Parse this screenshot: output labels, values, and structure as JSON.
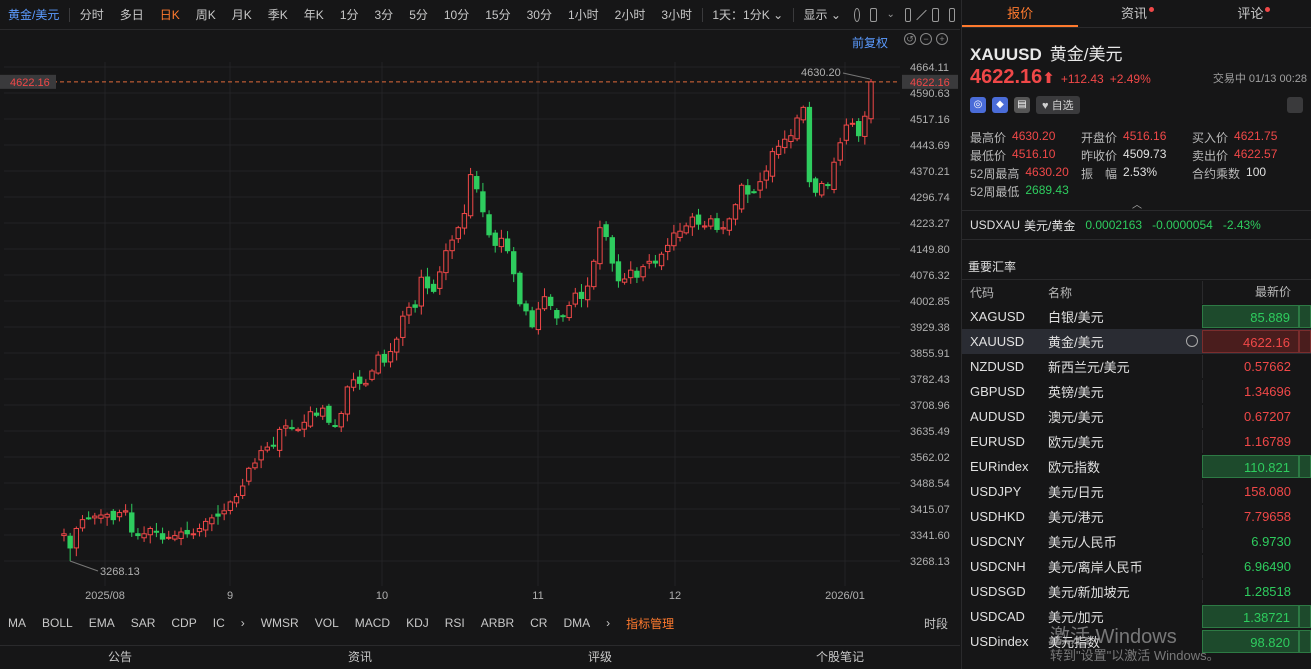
{
  "toolbar": {
    "symbol": "黄金/美元",
    "periods": [
      "分时",
      "多日",
      "日K",
      "周K",
      "月K",
      "季K",
      "年K",
      "1分",
      "3分",
      "5分",
      "10分",
      "15分",
      "30分",
      "1小时",
      "2小时",
      "3小时"
    ],
    "active_period": "日K",
    "ratio": "1天：1分K",
    "display": "显示"
  },
  "chart": {
    "restore_label": "前复权",
    "y_ticks": [
      "4664.11",
      "4590.63",
      "4517.16",
      "4443.69",
      "4370.21",
      "4296.74",
      "4223.27",
      "4149.80",
      "4076.32",
      "4002.85",
      "3929.38",
      "3855.91",
      "3782.43",
      "3708.96",
      "3635.49",
      "3562.02",
      "3488.54",
      "3415.07",
      "3341.60",
      "3268.13"
    ],
    "x_ticks": [
      "2025/08",
      "9",
      "10",
      "11",
      "12",
      "2026/01"
    ],
    "current_price_tag": "4622.16",
    "high_label": "4630.20",
    "low_label": "3268.13",
    "up_color": "#f04848",
    "down_color": "#2ecc5e"
  },
  "chart_data": {
    "type": "candlestick",
    "y_range": [
      3268.13,
      4664.11
    ],
    "current": 4622.16,
    "max_high": 4630.2,
    "min_low": 3268.13,
    "closes": [
      3345,
      3305,
      3360,
      3385,
      3390,
      3395,
      3398,
      3400,
      3385,
      3405,
      3410,
      3350,
      3340,
      3345,
      3360,
      3350,
      3330,
      3335,
      3340,
      3350,
      3345,
      3345,
      3360,
      3380,
      3390,
      3395,
      3410,
      3435,
      3450,
      3480,
      3530,
      3545,
      3580,
      3590,
      3595,
      3640,
      3650,
      3645,
      3640,
      3660,
      3690,
      3680,
      3700,
      3660,
      3650,
      3685,
      3760,
      3780,
      3770,
      3770,
      3805,
      3850,
      3830,
      3860,
      3895,
      3960,
      3985,
      3985,
      4070,
      4040,
      4030,
      4085,
      4145,
      4175,
      4210,
      4250,
      4360,
      4320,
      4255,
      4190,
      4160,
      4180,
      4145,
      4080,
      3995,
      3975,
      3930,
      3980,
      4015,
      3990,
      3955,
      3960,
      3990,
      4025,
      4010,
      4045,
      4115,
      4210,
      4185,
      4110,
      4060,
      4065,
      4090,
      4070,
      4100,
      4115,
      4110,
      4135,
      4160,
      4195,
      4200,
      4215,
      4240,
      4220,
      4215,
      4235,
      4205,
      4210,
      4235,
      4275,
      4330,
      4305,
      4310,
      4340,
      4370,
      4425,
      4440,
      4460,
      4470,
      4520,
      4550,
      4340,
      4310,
      4335,
      4330,
      4395,
      4450,
      4500,
      4505,
      4470,
      4525,
      4622.16
    ],
    "x_labels": [
      "2025/08",
      "9",
      "10",
      "11",
      "12",
      "2026/01"
    ]
  },
  "indicators": {
    "items": [
      "MA",
      "BOLL",
      "EMA",
      "SAR",
      "CDP",
      "IC",
      "WMSR",
      "VOL",
      "MACD",
      "KDJ",
      "RSI",
      "ARBR",
      "CR",
      "DMA"
    ],
    "manager": "指标管理",
    "right": "时段"
  },
  "bottom_tabs": [
    "公告",
    "资讯",
    "评级",
    "个股笔记"
  ],
  "right_tabs": [
    "报价",
    "资讯",
    "评论"
  ],
  "quote": {
    "code": "XAUUSD",
    "name": "黄金/美元",
    "price": "4622.16",
    "arrow": "⬆",
    "change": "+112.43",
    "change_pct": "+2.49%",
    "status": "交易中 01/13 00:28",
    "fav": "自选",
    "stats": [
      [
        [
          "最高价",
          "4630.20",
          "red"
        ],
        [
          "开盘价",
          "4516.16",
          "red"
        ],
        [
          "买入价",
          "4621.75",
          "red"
        ]
      ],
      [
        [
          "最低价",
          "4516.10",
          "red"
        ],
        [
          "昨收价",
          "4509.73",
          "white"
        ],
        [
          "卖出价",
          "4622.57",
          "red"
        ]
      ],
      [
        [
          "52周最高",
          "4630.20",
          "red"
        ],
        [
          "振　幅",
          "2.53%",
          "white"
        ],
        [
          "合约乘数",
          "100",
          "white"
        ]
      ],
      [
        [
          "52周最低",
          "2689.43",
          "green"
        ]
      ]
    ],
    "cross": {
      "code": "USDXAU",
      "name": "美元/黄金",
      "price": "0.0002163",
      "change": "-0.0000054",
      "pct": "-2.43%"
    }
  },
  "fx": {
    "title": "重要汇率",
    "headers": [
      "代码",
      "名称",
      "最新价"
    ],
    "rows": [
      {
        "code": "XAGUSD",
        "name": "白银/美元",
        "price": "85.889",
        "dir": "down",
        "box": "g"
      },
      {
        "code": "XAUUSD",
        "name": "黄金/美元",
        "price": "4622.16",
        "dir": "up",
        "box": "r",
        "sel": true
      },
      {
        "code": "NZDUSD",
        "name": "新西兰元/美元",
        "price": "0.57662",
        "dir": "up"
      },
      {
        "code": "GBPUSD",
        "name": "英镑/美元",
        "price": "1.34696",
        "dir": "up"
      },
      {
        "code": "AUDUSD",
        "name": "澳元/美元",
        "price": "0.67207",
        "dir": "up"
      },
      {
        "code": "EURUSD",
        "name": "欧元/美元",
        "price": "1.16789",
        "dir": "up"
      },
      {
        "code": "EURindex",
        "name": "欧元指数",
        "price": "110.821",
        "dir": "down",
        "box": "g"
      },
      {
        "code": "USDJPY",
        "name": "美元/日元",
        "price": "158.080",
        "dir": "up"
      },
      {
        "code": "USDHKD",
        "name": "美元/港元",
        "price": "7.79658",
        "dir": "up"
      },
      {
        "code": "USDCNY",
        "name": "美元/人民币",
        "price": "6.9730",
        "dir": "down"
      },
      {
        "code": "USDCNH",
        "name": "美元/离岸人民币",
        "price": "6.96490",
        "dir": "down"
      },
      {
        "code": "USDSGD",
        "name": "美元/新加坡元",
        "price": "1.28518",
        "dir": "down"
      },
      {
        "code": "USDCAD",
        "name": "美元/加元",
        "price": "1.38721",
        "dir": "down",
        "box": "g"
      },
      {
        "code": "USDindex",
        "name": "美元指数",
        "price": "98.820",
        "dir": "down",
        "box": "g"
      }
    ]
  },
  "watermark": {
    "line1": "激活 Windows",
    "line2": "转到\"设置\"以激活 Windows。"
  }
}
